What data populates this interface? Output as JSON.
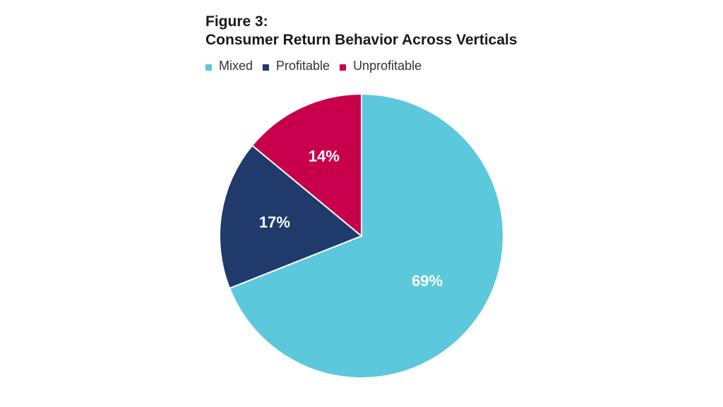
{
  "header": {
    "figure_label": "Figure 3:",
    "title": "Consumer Return Behavior Across Verticals"
  },
  "chart_data": {
    "type": "pie",
    "title": "Consumer Return Behavior Across Verticals",
    "slices": [
      {
        "name": "Mixed",
        "value": 69,
        "label": "69%",
        "color": "#5BC8DB"
      },
      {
        "name": "Profitable",
        "value": 17,
        "label": "17%",
        "color": "#1F3A6B"
      },
      {
        "name": "Unprofitable",
        "value": 14,
        "label": "14%",
        "color": "#C8004C"
      }
    ],
    "legend_position": "top-left",
    "slice_order": "clockwise from top"
  }
}
